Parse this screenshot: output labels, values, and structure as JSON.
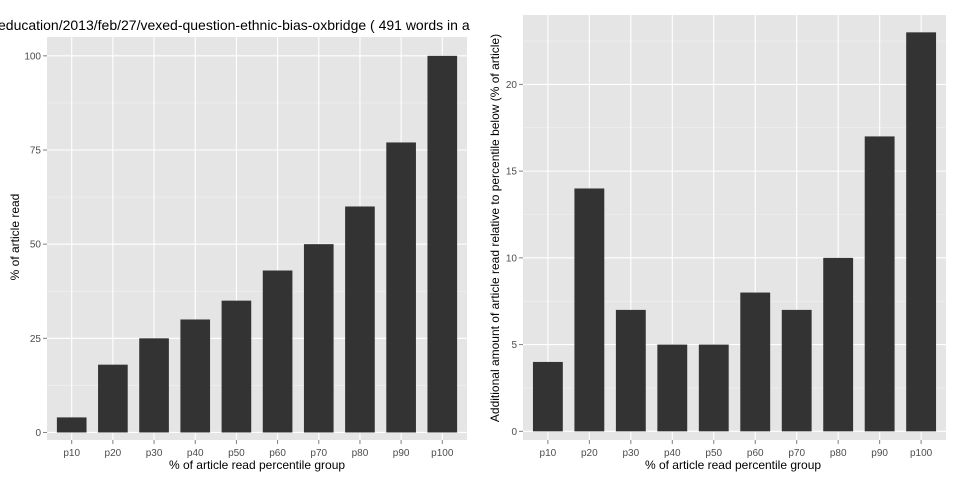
{
  "chart_data": [
    {
      "type": "bar",
      "title": "education/2013/feb/27/vexed-question-ethnic-bias-oxbridge ( 491 words in a",
      "xlabel": "% of article read percentile group",
      "ylabel": "% of article read",
      "categories": [
        "p10",
        "p20",
        "p30",
        "p40",
        "p50",
        "p60",
        "p70",
        "p80",
        "p90",
        "p100"
      ],
      "values": [
        4,
        18,
        25,
        30,
        35,
        43,
        50,
        60,
        77,
        100
      ],
      "ylim": [
        -2,
        105
      ],
      "yticks": [
        0,
        25,
        50,
        75,
        100
      ],
      "grid": true,
      "colors": {
        "bar": "#333333",
        "panel": "#e5e5e5",
        "grid_major": "#ffffff",
        "grid_minor": "#f2f2f2"
      }
    },
    {
      "type": "bar",
      "title": "",
      "xlabel": "% of article read percentile group",
      "ylabel": "Additional amount of article read relative to percentile below (% of article)",
      "categories": [
        "p10",
        "p20",
        "p30",
        "p40",
        "p50",
        "p60",
        "p70",
        "p80",
        "p90",
        "p100"
      ],
      "values": [
        4,
        14,
        7,
        5,
        5,
        8,
        7,
        10,
        17,
        23
      ],
      "ylim": [
        -0.5,
        24
      ],
      "yticks": [
        0,
        5,
        10,
        15,
        20
      ],
      "grid": true,
      "colors": {
        "bar": "#333333",
        "panel": "#e5e5e5",
        "grid_major": "#ffffff",
        "grid_minor": "#f2f2f2"
      }
    }
  ]
}
